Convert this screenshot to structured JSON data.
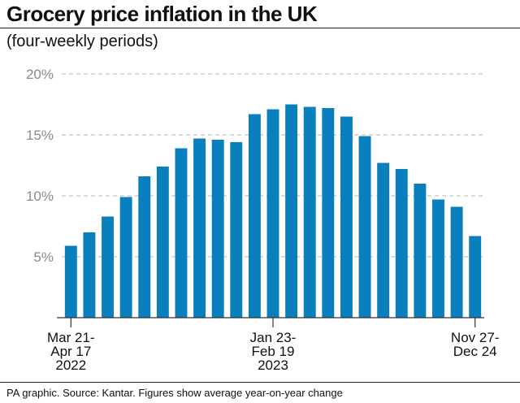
{
  "title": "Grocery price inflation in the UK",
  "subtitle": "(four-weekly periods)",
  "footer": "PA graphic. Source: Kantar. Figures show average year-on-year change",
  "colors": {
    "bar": "#0a7fbd",
    "grid": "#b5b5b5",
    "axis": "#333333",
    "ytick": "#8a8a8a"
  },
  "chart_data": {
    "type": "bar",
    "title": "Grocery price inflation in the UK",
    "subtitle": "(four-weekly periods)",
    "xlabel": "",
    "ylabel": "",
    "ylim": [
      0,
      20
    ],
    "yticks": [
      5,
      10,
      15,
      20
    ],
    "ytick_labels": [
      "5%",
      "10%",
      "15%",
      "20%"
    ],
    "grid": true,
    "values": [
      5.9,
      7.0,
      8.3,
      9.9,
      11.6,
      12.4,
      13.9,
      14.7,
      14.6,
      14.4,
      16.7,
      17.1,
      17.5,
      17.3,
      17.2,
      16.5,
      14.9,
      12.7,
      12.2,
      11.0,
      9.7,
      9.1,
      6.7
    ],
    "x_tick_marks": [
      {
        "index": 0,
        "lines": [
          "Mar 21-",
          "Apr 17",
          "2022"
        ]
      },
      {
        "index": 11,
        "lines": [
          "Jan 23-",
          "Feb 19",
          "2023"
        ]
      },
      {
        "index": 22,
        "lines": [
          "Nov 27-",
          "Dec 24"
        ]
      }
    ]
  }
}
